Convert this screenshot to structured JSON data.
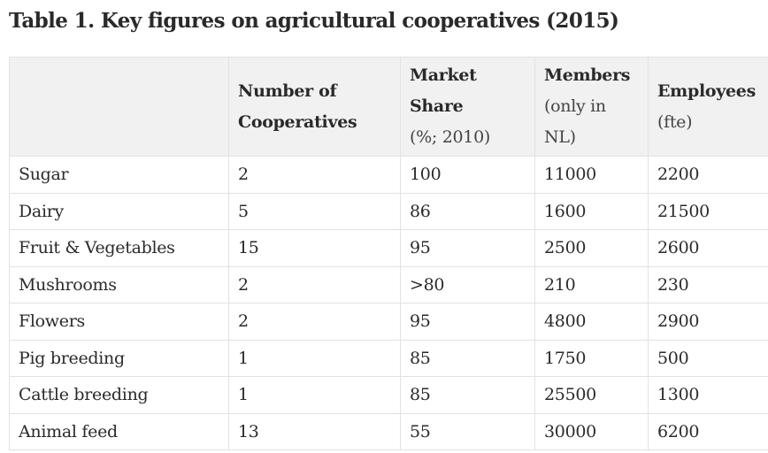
{
  "title": "Table 1. Key figures on agricultural cooperatives (2015)",
  "columns": [
    {
      "label": "",
      "sub": ""
    },
    {
      "label": "Number of Cooperatives",
      "sub": ""
    },
    {
      "label": "Market Share",
      "sub": "(%; 2010)"
    },
    {
      "label": "Members",
      "sub": "(only in NL)"
    },
    {
      "label": "Employees",
      "sub": "(fte)"
    }
  ],
  "rows": [
    [
      "Sugar",
      "2",
      "100",
      "11000",
      "2200"
    ],
    [
      "Dairy",
      "5",
      "86",
      "1600",
      "21500"
    ],
    [
      "Fruit & Vegetables",
      "15",
      "95",
      "2500",
      "2600"
    ],
    [
      "Mushrooms",
      "2",
      ">80",
      "210",
      "230"
    ],
    [
      "Flowers",
      "2",
      "95",
      "4800",
      "2900"
    ],
    [
      "Pig breeding",
      "1",
      "85",
      "1750",
      "500"
    ],
    [
      "Cattle breeding",
      "1",
      "85",
      "25500",
      "1300"
    ],
    [
      "Animal feed",
      "13",
      "55",
      "30000",
      "6200"
    ]
  ]
}
